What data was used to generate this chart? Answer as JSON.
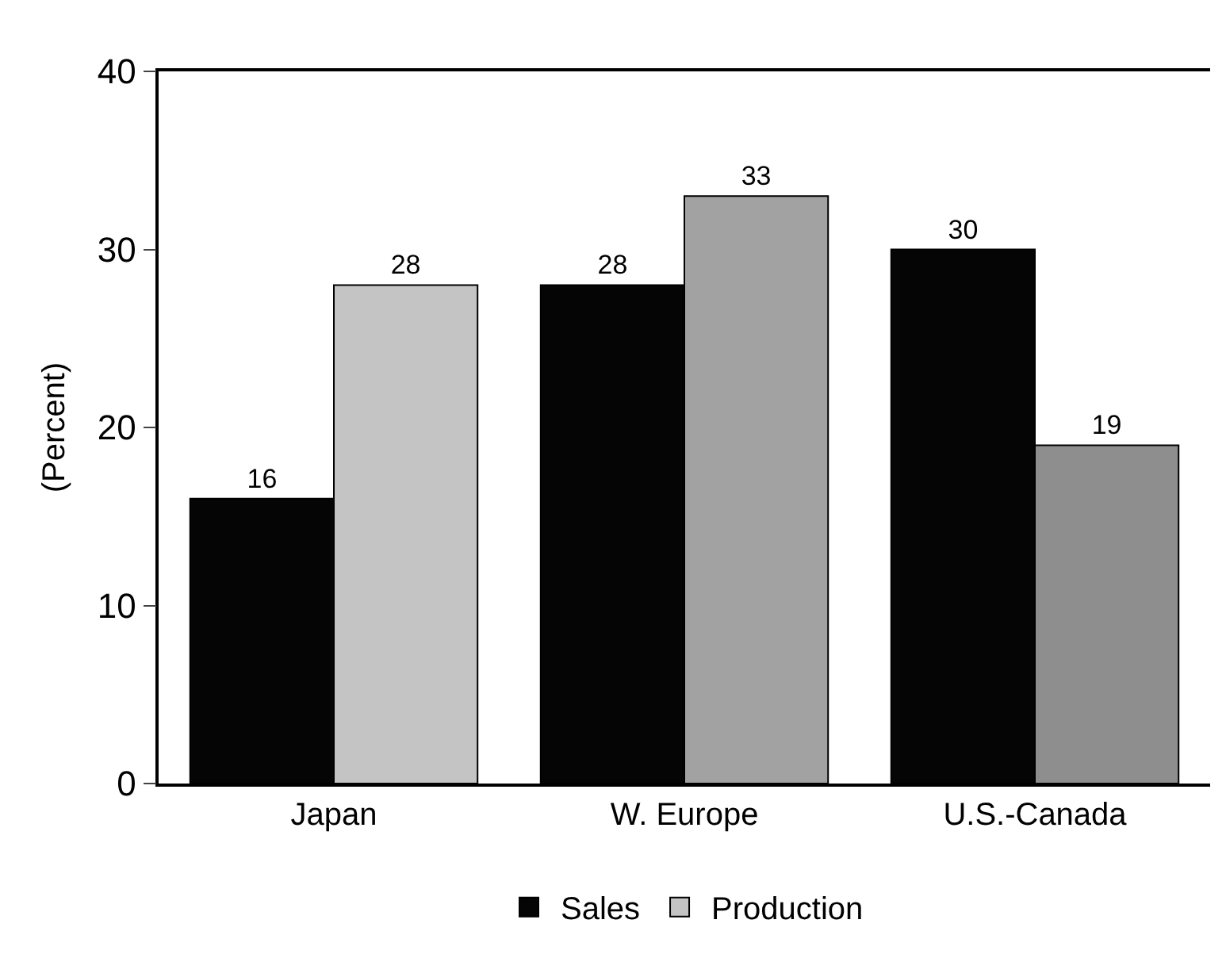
{
  "chart_data": {
    "type": "bar",
    "ylabel": "(Percent)",
    "categories": [
      "Japan",
      "W. Europe",
      "U.S.-Canada"
    ],
    "series": [
      {
        "name": "Sales",
        "color": "#050505",
        "values": [
          16,
          28,
          30
        ]
      },
      {
        "name": "Production",
        "color": "#9a9a9a",
        "colors": [
          "#c4c4c4",
          "#a2a2a2",
          "#8e8e8e"
        ],
        "values": [
          28,
          33,
          19
        ]
      }
    ],
    "ylim": [
      0,
      40
    ],
    "yticks": [
      0,
      10,
      20,
      30,
      40
    ],
    "legend": "bottom",
    "data_labels": true
  }
}
